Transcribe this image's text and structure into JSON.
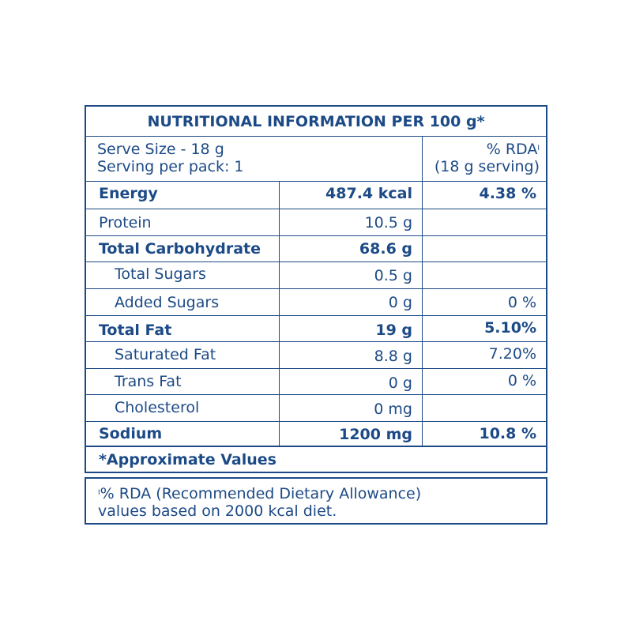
{
  "table": {
    "title": "NUTRITIONAL INFORMATION PER 100 g*",
    "serve_size": "Serve Size - 18 g",
    "serving_per_pack": "Serving per pack: 1",
    "rda_heading": "% RDA",
    "rda_heading_mark": "I",
    "rda_subheading": "(18 g serving)",
    "rows": [
      {
        "name": "Energy",
        "amount": "487.4 kcal",
        "rda": "4.38 %"
      },
      {
        "name": "Protein",
        "amount": "10.5 g",
        "rda": ""
      },
      {
        "name": "Total Carbohydrate",
        "amount": "68.6 g",
        "rda": ""
      },
      {
        "name": "Total Sugars",
        "amount": "0.5 g",
        "rda": ""
      },
      {
        "name": "Added Sugars",
        "amount": "0 g",
        "rda": "0 %"
      },
      {
        "name": "Total Fat",
        "amount": "19 g",
        "rda": "5.10%"
      },
      {
        "name": "Saturated Fat",
        "amount": "8.8 g",
        "rda": "7.20%"
      },
      {
        "name": "Trans Fat",
        "amount": "0 g",
        "rda": "0 %"
      },
      {
        "name": "Cholesterol",
        "amount": "0 mg",
        "rda": ""
      },
      {
        "name": "Sodium",
        "amount": "1200 mg",
        "rda": "10.8 %"
      }
    ],
    "footer": "*Approximate Values"
  },
  "note": {
    "mark": "I",
    "line1": "% RDA (Recommended Dietary Allowance)",
    "line2": "values based on 2000 kcal diet."
  }
}
